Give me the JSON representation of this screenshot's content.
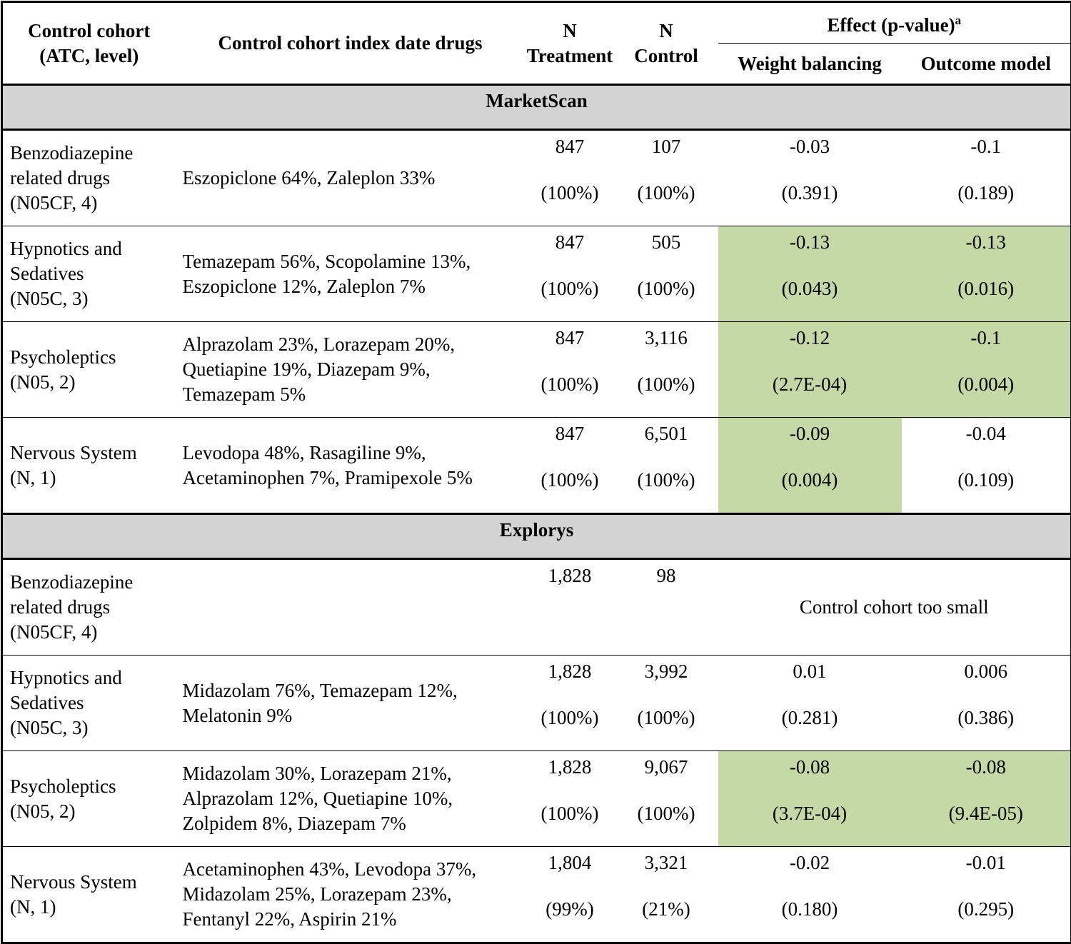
{
  "header": {
    "cohort": [
      "Control cohort",
      "(ATC, level)"
    ],
    "drugs": "Control cohort index date drugs",
    "n_treatment": [
      "N",
      "Treatment"
    ],
    "n_control": [
      "N",
      "Control"
    ],
    "effect": "Effect (p-value)",
    "effect_note": "a",
    "weight": "Weight balancing",
    "outcome": "Outcome model"
  },
  "sections": [
    {
      "name": "MarketScan",
      "rows": [
        {
          "cohort": [
            "Benzodiazepine",
            "related drugs",
            "(N05CF, 4)"
          ],
          "drugs": [
            "Eszopiclone 64%, Zaleplon 33%"
          ],
          "treatment": "847",
          "treatment_pct": "(100%)",
          "control": "107",
          "control_pct": "(100%)",
          "weight": "-0.03",
          "weight_p": "(0.391)",
          "outcome": "-0.1",
          "outcome_p": "(0.189)",
          "highlight": [
            false,
            false
          ]
        },
        {
          "cohort": [
            "Hypnotics and",
            "Sedatives",
            "(N05C, 3)"
          ],
          "drugs": [
            "Temazepam 56%, Scopolamine 13%,",
            "Eszopiclone 12%, Zaleplon 7%"
          ],
          "treatment": "847",
          "treatment_pct": "(100%)",
          "control": "505",
          "control_pct": "(100%)",
          "weight": "-0.13",
          "weight_p": "(0.043)",
          "outcome": "-0.13",
          "outcome_p": "(0.016)",
          "highlight": [
            true,
            true
          ]
        },
        {
          "cohort": [
            "Psycholeptics",
            "(N05, 2)"
          ],
          "drugs": [
            "Alprazolam 23%, Lorazepam 20%,",
            "Quetiapine 19%, Diazepam 9%,",
            "Temazepam 5%"
          ],
          "treatment": "847",
          "treatment_pct": "(100%)",
          "control": "3,116",
          "control_pct": "(100%)",
          "weight": "-0.12",
          "weight_p": "(2.7E-04)",
          "outcome": "-0.1",
          "outcome_p": "(0.004)",
          "highlight": [
            true,
            true
          ]
        },
        {
          "cohort": [
            "Nervous System",
            "(N, 1)"
          ],
          "drugs": [
            "Levodopa 48%, Rasagiline 9%,",
            "Acetaminophen 7%, Pramipexole 5%"
          ],
          "treatment": "847",
          "treatment_pct": "(100%)",
          "control": "6,501",
          "control_pct": "(100%)",
          "weight": "-0.09",
          "weight_p": "(0.004)",
          "outcome": "-0.04",
          "outcome_p": "(0.109)",
          "highlight": [
            true,
            false
          ]
        }
      ]
    },
    {
      "name": "Explorys",
      "rows": [
        {
          "cohort": [
            "Benzodiazepine",
            "related drugs",
            "(N05CF, 4)"
          ],
          "drugs": [],
          "treatment": "1,828",
          "control": "98",
          "note": "Control cohort too small",
          "highlight": [
            false,
            false
          ]
        },
        {
          "cohort": [
            "Hypnotics and",
            "Sedatives",
            "(N05C, 3)"
          ],
          "drugs": [
            "Midazolam 76%, Temazepam 12%,",
            "Melatonin 9%"
          ],
          "treatment": "1,828",
          "treatment_pct": "(100%)",
          "control": "3,992",
          "control_pct": "(100%)",
          "weight": "0.01",
          "weight_p": "(0.281)",
          "outcome": "0.006",
          "outcome_p": "(0.386)",
          "highlight": [
            false,
            false
          ]
        },
        {
          "cohort": [
            "Psycholeptics",
            "(N05, 2)"
          ],
          "drugs": [
            "Midazolam 30%, Lorazepam 21%,",
            "Alprazolam 12%, Quetiapine 10%,",
            "Zolpidem 8%, Diazepam 7%"
          ],
          "treatment": "1,828",
          "treatment_pct": "(100%)",
          "control": "9,067",
          "control_pct": "(100%)",
          "weight": "-0.08",
          "weight_p": "(3.7E-04)",
          "outcome": "-0.08",
          "outcome_p": "(9.4E-05)",
          "highlight": [
            true,
            true
          ]
        },
        {
          "cohort": [
            "Nervous System",
            "(N, 1)"
          ],
          "drugs": [
            "Acetaminophen 43%, Levodopa 37%,",
            "Midazolam 25%, Lorazepam 23%,",
            "Fentanyl 22%, Aspirin 21%"
          ],
          "treatment": "1,804",
          "treatment_pct": "(99%)",
          "control": "3,321",
          "control_pct": "(21%)",
          "weight": "-0.02",
          "weight_p": "(0.180)",
          "outcome": "-0.01",
          "outcome_p": "(0.295)",
          "highlight": [
            false,
            false
          ]
        }
      ]
    }
  ]
}
